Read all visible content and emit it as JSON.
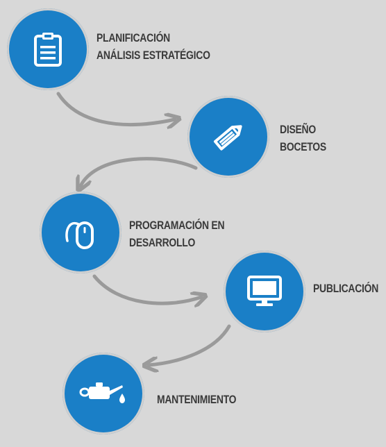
{
  "colors": {
    "background": "#d8d8d8",
    "circle": "#1a7fc7",
    "icon": "#ffffff",
    "arrow": "#9a9a9a",
    "text": "#3a3a3a"
  },
  "steps": [
    {
      "icon": "clipboard-icon",
      "line1": "PLANIFICACIÓN",
      "line2": "ANÁLISIS ESTRATÉGICO"
    },
    {
      "icon": "pencil-icon",
      "line1": "DISEÑO",
      "line2": "BOCETOS"
    },
    {
      "icon": "mouse-icon",
      "line1": "PROGRAMACIÓN EN",
      "line2": "DESARROLLO"
    },
    {
      "icon": "monitor-icon",
      "line1": "PUBLICACIÓN",
      "line2": ""
    },
    {
      "icon": "oil-can-icon",
      "line1": "MANTENIMIENTO",
      "line2": ""
    }
  ]
}
